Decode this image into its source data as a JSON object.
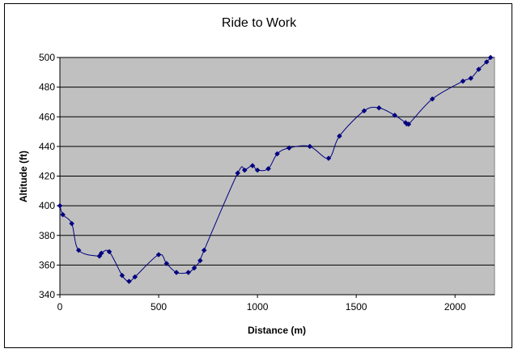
{
  "chart_data": {
    "type": "line",
    "title": "Ride to Work",
    "xlabel": "Distance (m)",
    "ylabel": "Altitude (ft)",
    "xlim": [
      0,
      2200
    ],
    "ylim": [
      340,
      500
    ],
    "x_ticks": [
      0,
      500,
      1000,
      1500,
      2000
    ],
    "y_ticks": [
      340,
      360,
      380,
      400,
      420,
      440,
      460,
      480,
      500
    ],
    "grid": "horizontal",
    "plot_area_color": "#c0c0c0",
    "series_color": "#000080",
    "series": [
      {
        "marker": "diamond",
        "smooth": true,
        "points": [
          [
            0,
            400
          ],
          [
            15,
            394
          ],
          [
            60,
            388
          ],
          [
            95,
            370
          ],
          [
            200,
            366
          ],
          [
            210,
            368
          ],
          [
            250,
            369
          ],
          [
            315,
            353
          ],
          [
            350,
            349
          ],
          [
            380,
            352
          ],
          [
            500,
            367
          ],
          [
            540,
            361
          ],
          [
            590,
            355
          ],
          [
            650,
            355
          ],
          [
            680,
            358
          ],
          [
            710,
            363
          ],
          [
            730,
            370
          ],
          [
            900,
            422
          ],
          [
            935,
            424
          ],
          [
            975,
            427
          ],
          [
            1000,
            424
          ],
          [
            1055,
            425
          ],
          [
            1100,
            435
          ],
          [
            1160,
            439
          ],
          [
            1265,
            440
          ],
          [
            1360,
            432
          ],
          [
            1415,
            447
          ],
          [
            1540,
            464
          ],
          [
            1615,
            466
          ],
          [
            1695,
            461
          ],
          [
            1750,
            456
          ],
          [
            1765,
            455
          ],
          [
            1885,
            472
          ],
          [
            2040,
            484
          ],
          [
            2080,
            486
          ],
          [
            2120,
            492
          ],
          [
            2160,
            497
          ],
          [
            2180,
            500
          ]
        ]
      }
    ]
  }
}
